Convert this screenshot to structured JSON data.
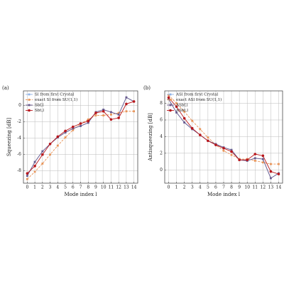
{
  "chart_data": [
    {
      "type": "line",
      "panel_label": "(a)",
      "xlabel": "Mode index l",
      "ylabel": "Squeezing [dB]",
      "x": [
        0,
        1,
        2,
        3,
        4,
        5,
        6,
        7,
        8,
        9,
        10,
        11,
        12,
        13,
        14
      ],
      "xlim": [
        -0.5,
        14.5
      ],
      "xticks": [
        0,
        1,
        2,
        3,
        4,
        5,
        6,
        7,
        8,
        9,
        10,
        11,
        12,
        13,
        14
      ],
      "ylim": [
        -9.5,
        1.8
      ],
      "yticks": [
        -8,
        -6,
        -4,
        -2,
        0
      ],
      "grid": true,
      "legend": "upper left",
      "series": [
        {
          "name": "Sl from first Crystal",
          "color": "#8fb3e8",
          "marker": "square",
          "linestyle": "solid",
          "values": [
            -8.6,
            -6.9,
            -5.6,
            -4.7,
            -3.9,
            -3.3,
            -2.8,
            -2.5,
            -2.1,
            -0.8,
            -0.5,
            -0.8,
            -1.1,
            1.0,
            0.5
          ]
        },
        {
          "name": "exact Sl from SU(1,1)",
          "color": "#e8955a",
          "marker": "square",
          "linestyle": "dashed",
          "values": [
            -9.0,
            -8.1,
            -7.1,
            -6.0,
            -4.9,
            -3.9,
            -3.0,
            -2.2,
            -1.7,
            -1.2,
            -1.2,
            -1.1,
            -0.9,
            -0.7,
            -0.7
          ]
        },
        {
          "name": "Sbf,l",
          "color": "#6a5a8c",
          "marker": "square",
          "linestyle": "solid",
          "values": [
            -8.6,
            -6.9,
            -5.6,
            -4.7,
            -3.9,
            -3.3,
            -2.8,
            -2.5,
            -2.1,
            -0.8,
            -0.5,
            -0.8,
            -1.1,
            1.0,
            0.5
          ]
        },
        {
          "name": "Sbt,l",
          "color": "#b8161b",
          "marker": "circle",
          "linestyle": "solid",
          "values": [
            -8.3,
            -7.4,
            -6.0,
            -4.7,
            -3.8,
            -3.1,
            -2.6,
            -2.2,
            -1.9,
            -0.9,
            -0.7,
            -1.7,
            -1.5,
            0.2,
            0.5
          ]
        }
      ]
    },
    {
      "type": "line",
      "panel_label": "(b)",
      "xlabel": "Mode index l",
      "ylabel": "Antisqueezing [dB]",
      "x": [
        0,
        1,
        2,
        3,
        4,
        5,
        6,
        7,
        8,
        9,
        10,
        11,
        12,
        13,
        14
      ],
      "xlim": [
        -0.5,
        14.5
      ],
      "xticks": [
        0,
        1,
        2,
        3,
        4,
        5,
        6,
        7,
        8,
        9,
        10,
        11,
        12,
        13,
        14
      ],
      "ylim": [
        -1.6,
        9.5
      ],
      "yticks": [
        0,
        2,
        4,
        6,
        8
      ],
      "grid": true,
      "legend": "upper right",
      "series": [
        {
          "name": "ASl from first Crystal",
          "color": "#8fb3e8",
          "marker": "square",
          "linestyle": "solid",
          "values": [
            8.5,
            6.9,
            5.7,
            4.9,
            4.2,
            3.5,
            3.1,
            2.7,
            2.4,
            1.2,
            1.1,
            1.4,
            1.3,
            -1.0,
            -0.4
          ]
        },
        {
          "name": "exact ASl from SU(1,1)",
          "color": "#e8955a",
          "marker": "square",
          "linestyle": "dashed",
          "values": [
            9.0,
            8.0,
            7.0,
            5.9,
            4.9,
            3.9,
            3.0,
            2.3,
            1.8,
            1.3,
            1.3,
            1.1,
            0.9,
            0.7,
            0.7
          ]
        },
        {
          "name": "ASbf,l",
          "color": "#6a5a8c",
          "marker": "square",
          "linestyle": "solid",
          "values": [
            8.5,
            6.9,
            5.7,
            4.9,
            4.2,
            3.5,
            3.1,
            2.7,
            2.4,
            1.2,
            1.1,
            1.4,
            1.3,
            -1.0,
            -0.4
          ]
        },
        {
          "name": "ASbt,l",
          "color": "#b8161b",
          "marker": "circle",
          "linestyle": "solid",
          "values": [
            8.7,
            7.6,
            6.2,
            5.0,
            4.2,
            3.5,
            3.0,
            2.6,
            2.2,
            1.2,
            1.2,
            1.9,
            1.7,
            -0.2,
            -0.5
          ]
        }
      ]
    }
  ]
}
